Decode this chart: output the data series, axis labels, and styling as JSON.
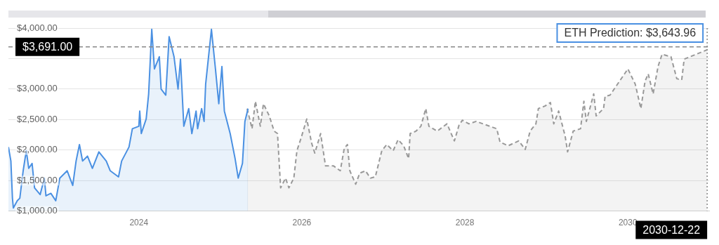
{
  "chart_data": {
    "type": "area",
    "xlim": [
      "2022-05-27",
      "2030-12-31"
    ],
    "xticks": [
      "2024",
      "2026",
      "2028",
      "2030"
    ],
    "ylim": [
      1000,
      4000
    ],
    "yticks": [
      {
        "value": 1000,
        "label": "$1,000.00"
      },
      {
        "value": 1500,
        "label": "$1,500.00"
      },
      {
        "value": 2000,
        "label": "$2,000.00"
      },
      {
        "value": 2500,
        "label": "$2,500.00"
      },
      {
        "value": 3000,
        "label": "$3,000.00"
      },
      {
        "value": 3500,
        "label": null
      },
      {
        "value": 4000,
        "label": "$4,000.00"
      }
    ],
    "grid": "y",
    "legend": false,
    "marker": "none",
    "series": [
      {
        "color": "#4a90e2",
        "line_style": "solid",
        "x": [
          "2022-05-27",
          "2022-06-07",
          "2022-06-14",
          "2022-06-18",
          "2022-07-06",
          "2022-07-17",
          "2022-08-01",
          "2022-08-15",
          "2022-08-26",
          "2022-09-10",
          "2022-09-21",
          "2022-10-16",
          "2022-11-04",
          "2022-11-11",
          "2022-12-03",
          "2022-12-25",
          "2023-01-12",
          "2023-02-14",
          "2023-03-11",
          "2023-03-26",
          "2023-04-10",
          "2023-04-24",
          "2023-05-16",
          "2023-06-07",
          "2023-07-06",
          "2023-08-08",
          "2023-08-26",
          "2023-10-02",
          "2023-10-16",
          "2023-11-18",
          "2023-12-03",
          "2024-01-01",
          "2024-01-05",
          "2024-01-12",
          "2024-02-03",
          "2024-02-14",
          "2024-02-28",
          "2024-03-11",
          "2024-04-02",
          "2024-04-10",
          "2024-05-01",
          "2024-05-16",
          "2024-06-07",
          "2024-06-25",
          "2024-07-06",
          "2024-07-21",
          "2024-08-12",
          "2024-08-26",
          "2024-09-14",
          "2024-09-21",
          "2024-10-09",
          "2024-10-20",
          "2024-10-27",
          "2024-11-22",
          "2024-12-10",
          "2024-12-25",
          "2025-01-08",
          "2025-01-19",
          "2025-02-14",
          "2025-03-08",
          "2025-03-22",
          "2025-04-10",
          "2025-04-21",
          "2025-05-05"
        ],
        "values": [
          2050,
          1820,
          1210,
          1050,
          1170,
          1210,
          1660,
          1990,
          1700,
          1780,
          1380,
          1270,
          1540,
          1250,
          1290,
          1170,
          1540,
          1660,
          1420,
          1820,
          2090,
          1820,
          1900,
          1700,
          1970,
          1820,
          1660,
          1560,
          1820,
          2050,
          2350,
          2390,
          2640,
          2270,
          2510,
          2920,
          3980,
          3330,
          3530,
          3000,
          2900,
          3860,
          3530,
          3000,
          3490,
          2390,
          2680,
          2270,
          2640,
          2350,
          2680,
          2470,
          3080,
          3980,
          3330,
          2760,
          3370,
          2640,
          2270,
          1860,
          1540,
          1780,
          2470,
          2680
        ]
      },
      {
        "color": "#999999",
        "line_style": "dashed",
        "x": [
          "2025-05-01",
          "2025-05-23",
          "2025-06-07",
          "2025-06-29",
          "2025-07-13",
          "2025-08-08",
          "2025-08-30",
          "2025-09-14",
          "2025-09-28",
          "2025-10-20",
          "2025-11-04",
          "2025-11-26",
          "2025-12-10",
          "2025-12-28",
          "2026-01-23",
          "2026-02-14",
          "2026-02-28",
          "2026-03-26",
          "2026-04-17",
          "2026-05-23",
          "2026-06-22",
          "2026-07-10",
          "2026-07-24",
          "2026-08-04",
          "2026-08-30",
          "2026-09-17",
          "2026-10-13",
          "2026-11-04",
          "2026-11-26",
          "2026-12-25",
          "2027-01-16",
          "2027-02-14",
          "2027-03-08",
          "2027-04-02",
          "2027-04-24",
          "2027-05-01",
          "2027-05-27",
          "2027-06-18",
          "2027-07-10",
          "2027-07-24",
          "2027-08-30",
          "2027-10-13",
          "2027-11-15",
          "2027-12-06",
          "2027-12-21",
          "2028-01-19",
          "2028-02-21",
          "2028-03-22",
          "2028-05-23",
          "2028-06-07",
          "2028-07-13",
          "2028-08-30",
          "2028-09-28",
          "2028-10-20",
          "2028-11-15",
          "2028-11-26",
          "2028-12-25",
          "2029-01-19",
          "2029-02-03",
          "2029-02-25",
          "2029-03-26",
          "2029-04-06",
          "2029-05-01",
          "2029-06-03",
          "2029-06-18",
          "2029-06-29",
          "2029-08-01",
          "2029-08-12",
          "2029-09-14",
          "2029-09-21",
          "2029-10-13",
          "2029-10-27",
          "2029-12-03",
          "2030-01-01",
          "2030-02-03",
          "2030-02-28",
          "2030-03-19",
          "2030-04-02",
          "2030-04-24",
          "2030-05-16",
          "2030-06-03",
          "2030-07-13",
          "2030-08-08",
          "2030-08-30",
          "2030-09-10",
          "2030-12-22"
        ],
        "values": [
          2680,
          2350,
          2800,
          2390,
          2760,
          2560,
          2310,
          2270,
          1380,
          1540,
          1380,
          1540,
          1990,
          2190,
          2510,
          2110,
          1950,
          2270,
          1740,
          1740,
          1660,
          2030,
          2090,
          1660,
          1440,
          1620,
          1660,
          1540,
          1560,
          1990,
          2090,
          1990,
          2170,
          2070,
          1860,
          2270,
          2310,
          2390,
          2680,
          2390,
          2310,
          2430,
          2150,
          2410,
          2490,
          2430,
          2470,
          2430,
          2350,
          2130,
          2070,
          2150,
          2010,
          2310,
          2430,
          2680,
          2720,
          2780,
          2430,
          2640,
          2230,
          1970,
          2310,
          2350,
          2800,
          2470,
          2920,
          2560,
          2680,
          2880,
          2900,
          null,
          null,
          3330,
          3080,
          2680,
          3130,
          3250,
          2920,
          3370,
          3570,
          3530,
          3170,
          3150,
          3490,
          3643.96
        ]
      }
    ],
    "ref_lines": [
      {
        "axis": "y",
        "value": 3691,
        "label": "$3,691.00",
        "line_style": "dashed"
      },
      {
        "axis": "x",
        "value": "2030-12-22",
        "label": "2030-12-22",
        "line_style": "dotted"
      }
    ],
    "annotations": [
      {
        "text": "ETH Prediction: $3,643.96",
        "x": "2030-12-22",
        "y": 3643.96
      }
    ]
  }
}
